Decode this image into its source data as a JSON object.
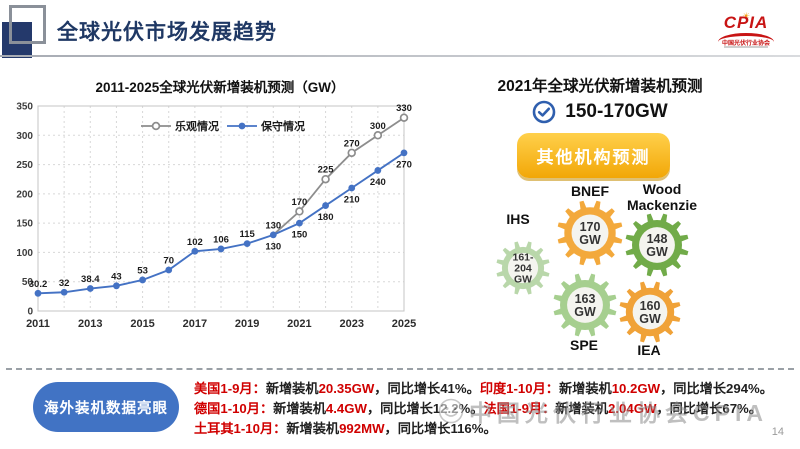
{
  "header": {
    "title": "全球光伏市场发展趋势",
    "logo": {
      "name": "CPIA",
      "org": "中国光伏行业协会"
    }
  },
  "chart_data": {
    "type": "line",
    "title": "2011-2025全球光伏新增装机预测（GW）",
    "unit": "GW",
    "x": [
      2011,
      2012,
      2013,
      2014,
      2015,
      2016,
      2017,
      2018,
      2019,
      2020,
      2021,
      2022,
      2023,
      2024,
      2025
    ],
    "series": [
      {
        "name": "乐观情况",
        "color": "#8d8d8d",
        "marker": "open-circle",
        "values": [
          null,
          null,
          null,
          null,
          null,
          null,
          null,
          null,
          null,
          130,
          170,
          225,
          270,
          300,
          330
        ]
      },
      {
        "name": "保守情况",
        "color": "#4472c4",
        "marker": "filled-circle",
        "values": [
          30.2,
          32,
          38.4,
          43,
          53,
          70,
          102,
          106,
          115,
          130,
          150,
          180,
          210,
          240,
          270
        ]
      }
    ],
    "ylim": [
      0,
      350
    ],
    "ytick_step": 50,
    "xtick_labels": [
      "2011",
      "2013",
      "2015",
      "2017",
      "2019",
      "2021",
      "2023",
      "2025"
    ],
    "grid": "dashed-both",
    "legend_position": "top-inside"
  },
  "forecast_panel": {
    "title": "2021年全球光伏新增装机预测",
    "range": "150-170GW",
    "button_label": "其他机构预测",
    "gears": [
      {
        "org": "IHS",
        "value_lines": [
          "161-",
          "204",
          "GW"
        ],
        "color": "#b9d7aa",
        "small_text": true
      },
      {
        "org": "BNEF",
        "value_lines": [
          "170",
          "GW"
        ],
        "color": "#f3a93c",
        "small_text": false
      },
      {
        "org": "Wood Mackenzie",
        "value_lines": [
          "148",
          "GW"
        ],
        "color": "#71ab49",
        "small_text": false
      },
      {
        "org": "SPE",
        "value_lines": [
          "163",
          "GW"
        ],
        "color": "#a6cf8f",
        "small_text": false
      },
      {
        "org": "IEA",
        "value_lines": [
          "160",
          "GW"
        ],
        "color": "#f0a238",
        "small_text": false
      }
    ]
  },
  "news": {
    "badge": "海外装机数据亮眼",
    "lines": [
      [
        {
          "text": "美国1-9月：",
          "red": true
        },
        {
          "text": "新增装机",
          "red": false
        },
        {
          "text": "20.35GW",
          "red": true
        },
        {
          "text": "，同比增长41%。",
          "red": false
        },
        {
          "text": "印度1-10月：",
          "red": true
        },
        {
          "text": "新增装机",
          "red": false
        },
        {
          "text": "10.2GW",
          "red": true
        },
        {
          "text": "，同比增长294%。",
          "red": false
        }
      ],
      [
        {
          "text": "德国1-10月：",
          "red": true
        },
        {
          "text": "新增装机",
          "red": false
        },
        {
          "text": "4.4GW",
          "red": true
        },
        {
          "text": "，同比增长12.2%。",
          "red": false
        },
        {
          "text": "法国1-9月：",
          "red": true
        },
        {
          "text": "新增装机",
          "red": false
        },
        {
          "text": "2.04GW",
          "red": true
        },
        {
          "text": "，同比增长67%。",
          "red": false
        }
      ],
      [
        {
          "text": "土耳其1-10月：",
          "red": true
        },
        {
          "text": "新增装机",
          "red": false
        },
        {
          "text": "992MW",
          "red": true
        },
        {
          "text": "，同比增长116%。",
          "red": false
        }
      ]
    ]
  },
  "watermark": "中国光伏行业协会CPIA",
  "page_number": "14"
}
